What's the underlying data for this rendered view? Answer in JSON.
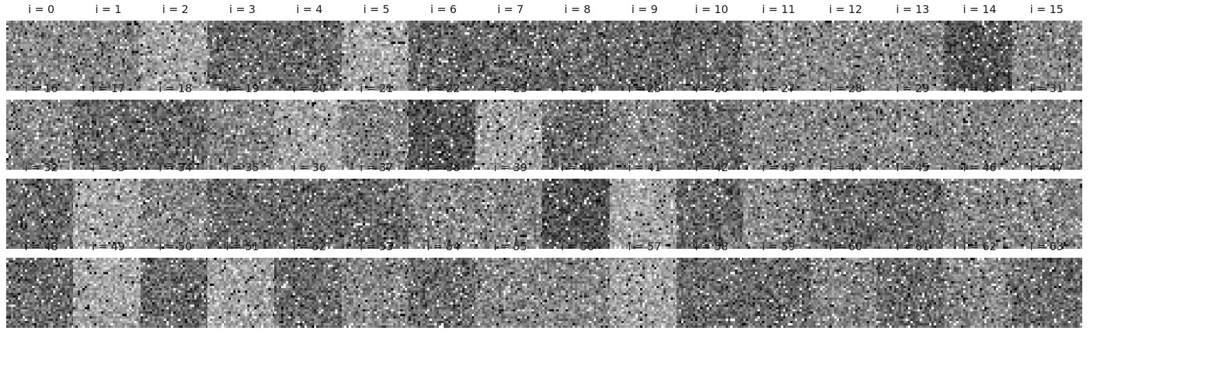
{
  "figure": {
    "panel_count": 64,
    "colormap": "gray",
    "panels": [
      {
        "title": "i = 0",
        "tone": "mid"
      },
      {
        "title": "i = 1",
        "tone": "mid"
      },
      {
        "title": "i = 2",
        "tone": "light"
      },
      {
        "title": "i = 3",
        "tone": "dark"
      },
      {
        "title": "i = 4",
        "tone": "dark"
      },
      {
        "title": "i = 5",
        "tone": "light"
      },
      {
        "title": "i = 6",
        "tone": "dark"
      },
      {
        "title": "i = 7",
        "tone": "dark"
      },
      {
        "title": "i = 8",
        "tone": "dark"
      },
      {
        "title": "i = 9",
        "tone": "dark"
      },
      {
        "title": "i = 10",
        "tone": "dark"
      },
      {
        "title": "i = 11",
        "tone": "mid"
      },
      {
        "title": "i = 12",
        "tone": "mid"
      },
      {
        "title": "i = 13",
        "tone": "mid"
      },
      {
        "title": "i = 14",
        "tone": "very-dark"
      },
      {
        "title": "i = 15",
        "tone": "mid"
      },
      {
        "title": "i = 16",
        "tone": "mid"
      },
      {
        "title": "i = 17",
        "tone": "dark"
      },
      {
        "title": "i = 18",
        "tone": "dark"
      },
      {
        "title": "i = 19",
        "tone": "mid"
      },
      {
        "title": "i = 20",
        "tone": "light"
      },
      {
        "title": "i = 21",
        "tone": "mid"
      },
      {
        "title": "i = 22",
        "tone": "very-dark"
      },
      {
        "title": "i = 23",
        "tone": "light"
      },
      {
        "title": "i = 24",
        "tone": "dark"
      },
      {
        "title": "i = 25",
        "tone": "mid"
      },
      {
        "title": "i = 26",
        "tone": "dark"
      },
      {
        "title": "i = 27",
        "tone": "mid"
      },
      {
        "title": "i = 28",
        "tone": "mid"
      },
      {
        "title": "i = 29",
        "tone": "mid"
      },
      {
        "title": "i = 30",
        "tone": "mid"
      },
      {
        "title": "i = 31",
        "tone": "mid"
      },
      {
        "title": "i = 32",
        "tone": "dark"
      },
      {
        "title": "i = 33",
        "tone": "light"
      },
      {
        "title": "i = 34",
        "tone": "mid"
      },
      {
        "title": "i = 35",
        "tone": "dark"
      },
      {
        "title": "i = 36",
        "tone": "dark"
      },
      {
        "title": "i = 37",
        "tone": "dark"
      },
      {
        "title": "i = 38",
        "tone": "mid"
      },
      {
        "title": "i = 39",
        "tone": "mid"
      },
      {
        "title": "i = 40",
        "tone": "very-dark"
      },
      {
        "title": "i = 41",
        "tone": "light"
      },
      {
        "title": "i = 42",
        "tone": "dark"
      },
      {
        "title": "i = 43",
        "tone": "mid"
      },
      {
        "title": "i = 44",
        "tone": "dark"
      },
      {
        "title": "i = 45",
        "tone": "dark"
      },
      {
        "title": "i = 46",
        "tone": "mid"
      },
      {
        "title": "i = 47",
        "tone": "mid"
      },
      {
        "title": "i = 48",
        "tone": "dark"
      },
      {
        "title": "i = 49",
        "tone": "light"
      },
      {
        "title": "i = 50",
        "tone": "dark"
      },
      {
        "title": "i = 51",
        "tone": "light"
      },
      {
        "title": "i = 52",
        "tone": "dark"
      },
      {
        "title": "i = 53",
        "tone": "mid"
      },
      {
        "title": "i = 54",
        "tone": "dark"
      },
      {
        "title": "i = 55",
        "tone": "mid"
      },
      {
        "title": "i = 56",
        "tone": "mid"
      },
      {
        "title": "i = 57",
        "tone": "light"
      },
      {
        "title": "i = 58",
        "tone": "dark"
      },
      {
        "title": "i = 59",
        "tone": "dark"
      },
      {
        "title": "i = 60",
        "tone": "mid"
      },
      {
        "title": "i = 61",
        "tone": "dark"
      },
      {
        "title": "i = 62",
        "tone": "mid"
      },
      {
        "title": "i = 63",
        "tone": "dark"
      }
    ]
  }
}
